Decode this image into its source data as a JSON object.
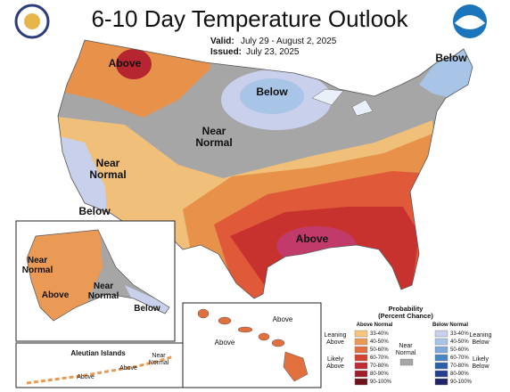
{
  "header": {
    "title": "6-10 Day Temperature Outlook",
    "valid_label": "Valid:",
    "valid_dates": "July 29 - August 2, 2025",
    "issued_label": "Issued:",
    "issued_date": "July 23, 2025"
  },
  "map_labels": [
    "Above",
    "Below",
    "Below",
    "Near Normal",
    "Near Normal",
    "Below",
    "Above"
  ],
  "alaska": {
    "labels": [
      "Near Normal",
      "Above",
      "Near Normal",
      "Below"
    ]
  },
  "hawaii": {
    "labels": [
      "Above",
      "Above"
    ]
  },
  "aleutian": {
    "title": "Aleutian Islands",
    "labels": [
      "Near Normal",
      "Above",
      "Above"
    ]
  },
  "legend": {
    "title": "Probability (Percent Chance)",
    "above_header": "Above Normal",
    "below_header": "Below Normal",
    "leaning_above": "Leaning Above",
    "likely_above": "Likely Above",
    "near_normal": "Near Normal",
    "near_color": "#a6a6a6",
    "leaning_below": "Leaning Below",
    "likely_below": "Likely Below",
    "above": [
      {
        "range": "33-40%",
        "color": "#f5c67c"
      },
      {
        "range": "40-50%",
        "color": "#eb9a56"
      },
      {
        "range": "50-60%",
        "color": "#e2703f"
      },
      {
        "range": "60-70%",
        "color": "#d4442d"
      },
      {
        "range": "70-80%",
        "color": "#c02c36"
      },
      {
        "range": "80-90%",
        "color": "#a01e2c"
      },
      {
        "range": "90-100%",
        "color": "#6e1219"
      }
    ],
    "below": [
      {
        "range": "33-40%",
        "color": "#c9d0ec"
      },
      {
        "range": "40-50%",
        "color": "#a8c4e6"
      },
      {
        "range": "50-60%",
        "color": "#7fa9d9"
      },
      {
        "range": "60-70%",
        "color": "#4b86c4"
      },
      {
        "range": "70-80%",
        "color": "#2d5fa8"
      },
      {
        "range": "80-90%",
        "color": "#253f8e"
      },
      {
        "range": "90-100%",
        "color": "#1f2466"
      }
    ]
  }
}
